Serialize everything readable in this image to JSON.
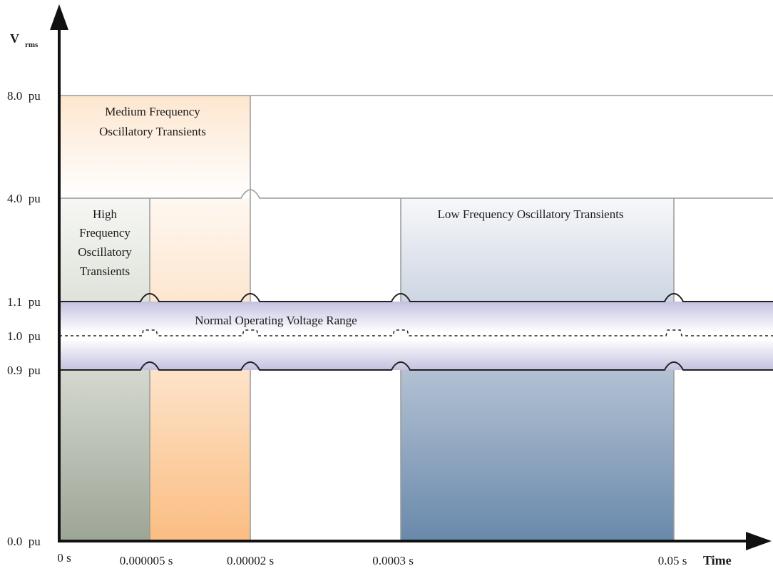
{
  "y_axis": {
    "title": "V",
    "title_subscript": "rms",
    "ticks": [
      "8.0  pu",
      "4.0  pu",
      "1.1  pu",
      "1.0  pu",
      "0.9  pu",
      "0.0  pu"
    ]
  },
  "x_axis": {
    "title": "Time",
    "ticks": [
      "0 s",
      "0.000005 s",
      "0.00002 s",
      "0.0003 s",
      "0.05 s"
    ]
  },
  "regions": {
    "medium": {
      "line1": "Medium Frequency",
      "line2": "Oscillatory Transients"
    },
    "high": {
      "line1": "High",
      "line2": "Frequency",
      "line3": "Oscillatory",
      "line4": "Transients"
    },
    "low": {
      "label": "Low Frequency Oscillatory Transients"
    },
    "normal": {
      "label": "Normal Operating Voltage Range"
    }
  },
  "colors": {
    "high_region": "#a0a998",
    "medium_region": "#fbbf86",
    "low_region": "#6b8cae",
    "normal_band": "#c9c7e3",
    "axis": "#111111",
    "grid": "#999999"
  }
}
